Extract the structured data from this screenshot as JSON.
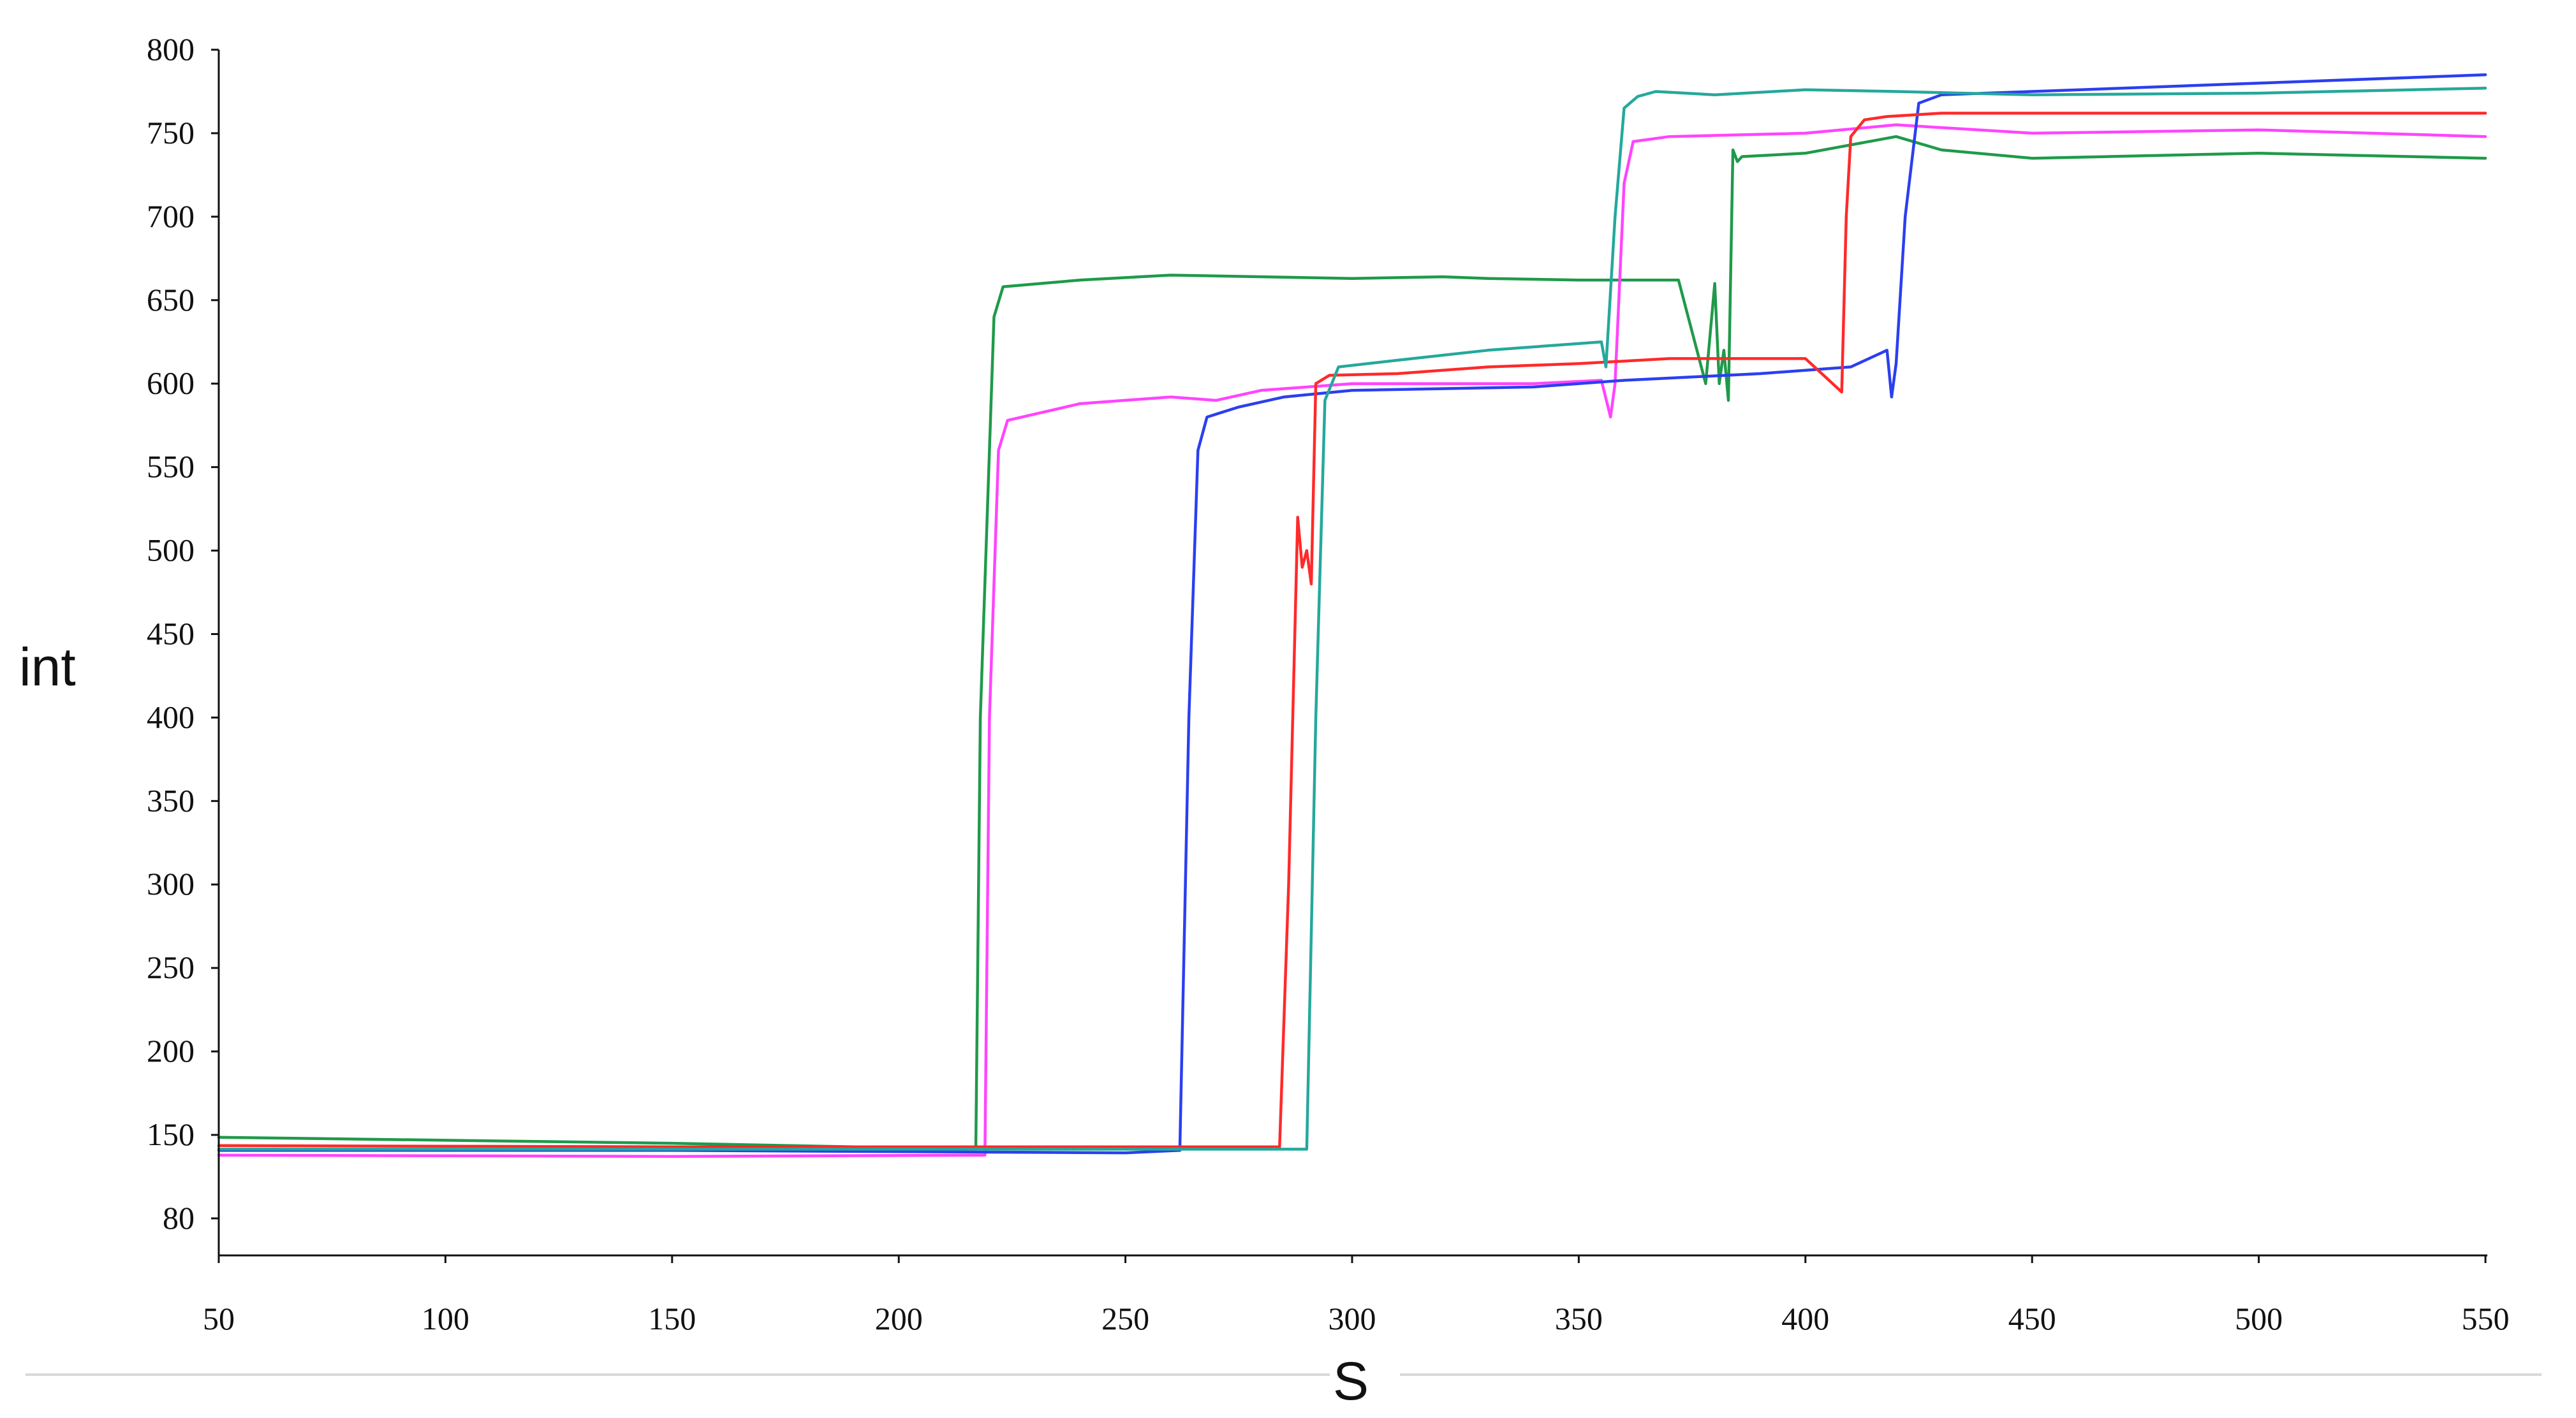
{
  "chart_data": {
    "type": "line",
    "xlabel": "S",
    "ylabel": "int",
    "xlim": [
      50,
      550
    ],
    "x_ticks": [
      50,
      100,
      150,
      200,
      250,
      300,
      350,
      400,
      450,
      500,
      550
    ],
    "y_ticks": [
      80,
      150,
      200,
      250,
      300,
      350,
      400,
      450,
      500,
      550,
      600,
      650,
      700,
      750,
      800
    ],
    "grid": false,
    "legend": "none",
    "series": [
      {
        "color": "#1f9a4a",
        "x": [
          50,
          150,
          217,
          218,
          221,
          223,
          240,
          260,
          300,
          320,
          330,
          350,
          372,
          378,
          380,
          381,
          382,
          383,
          384,
          385,
          386,
          400,
          420,
          430,
          450,
          500,
          550
        ],
        "y": [
          148,
          143,
          138,
          400,
          640,
          658,
          662,
          665,
          663,
          664,
          663,
          662,
          662,
          600,
          660,
          600,
          620,
          590,
          740,
          733,
          736,
          738,
          748,
          740,
          735,
          738,
          735
        ]
      },
      {
        "color": "#ff44ff",
        "x": [
          50,
          150,
          219,
          220,
          222,
          224,
          240,
          260,
          270,
          280,
          300,
          340,
          355,
          357,
          358,
          360,
          362,
          370,
          400,
          420,
          450,
          500,
          550
        ],
        "y": [
          133,
          132,
          133,
          400,
          560,
          578,
          588,
          592,
          590,
          596,
          600,
          600,
          602,
          580,
          600,
          720,
          745,
          748,
          750,
          755,
          750,
          752,
          748
        ]
      },
      {
        "color": "#2b3ff0",
        "x": [
          50,
          150,
          250,
          262,
          264,
          266,
          268,
          275,
          285,
          300,
          340,
          360,
          390,
          410,
          418,
          419,
          420,
          422,
          425,
          430,
          450,
          500,
          550
        ],
        "y": [
          137,
          137,
          135,
          137,
          400,
          560,
          580,
          586,
          592,
          596,
          598,
          602,
          606,
          610,
          620,
          592,
          612,
          700,
          768,
          773,
          775,
          780,
          785
        ]
      },
      {
        "color": "#ff2a2a",
        "x": [
          50,
          150,
          250,
          284,
          286,
          288,
          289,
          290,
          291,
          292,
          295,
          310,
          330,
          350,
          370,
          400,
          408,
          409,
          410,
          413,
          418,
          430,
          450,
          500,
          550
        ],
        "y": [
          141,
          140,
          140,
          140,
          300,
          520,
          490,
          500,
          480,
          600,
          605,
          606,
          610,
          612,
          615,
          615,
          595,
          700,
          748,
          758,
          760,
          762,
          762,
          762,
          762
        ]
      },
      {
        "color": "#25a89c",
        "x": [
          50,
          150,
          250,
          290,
          292,
          294,
          297,
          310,
          330,
          355,
          356,
          358,
          360,
          363,
          367,
          380,
          400,
          420,
          450,
          500,
          550
        ],
        "y": [
          138,
          138,
          138,
          138,
          400,
          590,
          610,
          614,
          620,
          625,
          610,
          700,
          765,
          772,
          775,
          773,
          776,
          775,
          773,
          774,
          777
        ]
      }
    ]
  }
}
